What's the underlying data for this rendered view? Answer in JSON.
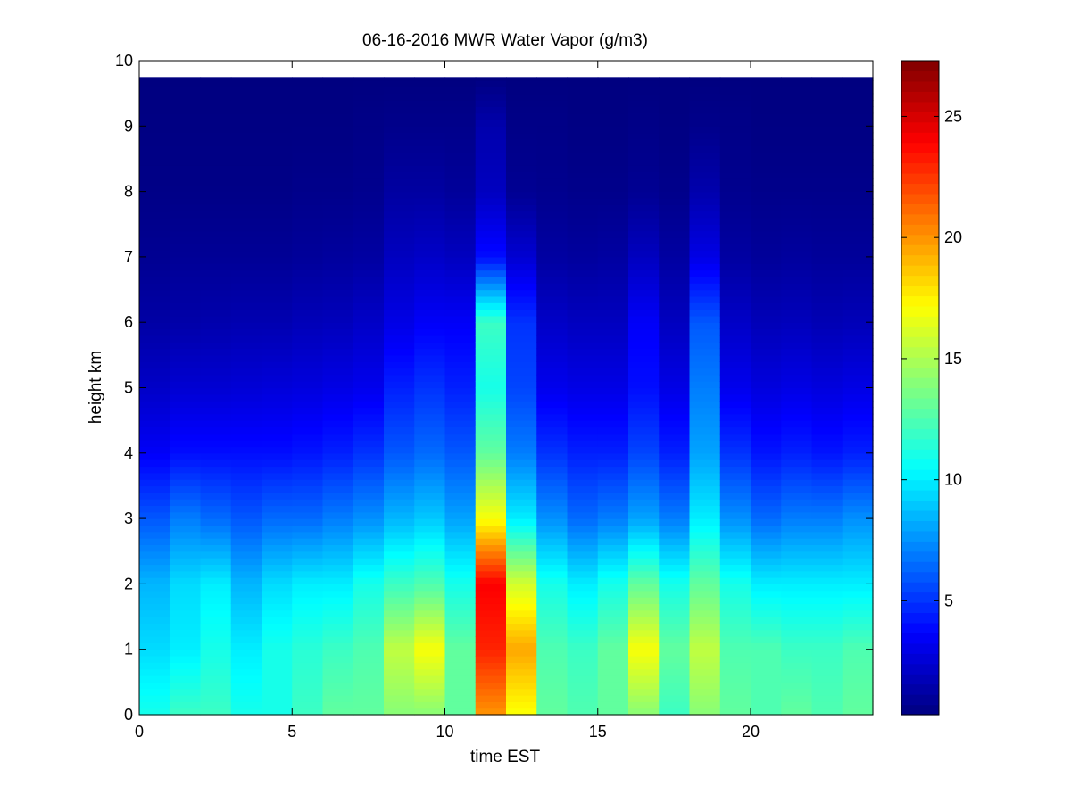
{
  "chart_data": {
    "type": "heatmap",
    "title": "06-16-2016 MWR Water Vapor (g/m3)",
    "xlabel": "time EST",
    "ylabel": "height km",
    "xlim": [
      0,
      24
    ],
    "ylim": [
      0,
      10
    ],
    "xticks": [
      0,
      5,
      10,
      15,
      20
    ],
    "yticks": [
      0,
      1,
      2,
      3,
      4,
      5,
      6,
      7,
      8,
      9,
      10
    ],
    "colorbar": {
      "range": [
        0.3,
        27.3
      ],
      "ticks": [
        5,
        10,
        15,
        20,
        25
      ],
      "colormap": "jet"
    },
    "grid": false,
    "time_step_hours": 1,
    "times": [
      0,
      1,
      2,
      3,
      4,
      5,
      6,
      7,
      8,
      9,
      10,
      11,
      12,
      13,
      14,
      15,
      16,
      17,
      18,
      19,
      20,
      21,
      22,
      23
    ],
    "profile_levels_km": [
      0,
      1,
      2,
      3,
      4,
      5,
      6,
      7,
      8,
      9,
      9.75
    ],
    "top_height_km": 9.75,
    "profiles": [
      [
        11,
        9.5,
        8.5,
        6,
        3.5,
        2.2,
        1.3,
        0.8,
        0.5,
        0.4,
        0.3
      ],
      [
        12,
        10,
        9.5,
        7,
        4,
        2.5,
        1.4,
        0.9,
        0.5,
        0.4,
        0.3
      ],
      [
        12,
        11,
        10,
        6.5,
        4,
        2.5,
        1.5,
        0.9,
        0.5,
        0.4,
        0.3
      ],
      [
        11,
        10,
        8.5,
        6,
        4,
        2.6,
        1.6,
        0.9,
        0.5,
        0.4,
        0.3
      ],
      [
        11,
        11,
        9.5,
        6.5,
        4,
        2.7,
        1.6,
        0.9,
        0.5,
        0.4,
        0.3
      ],
      [
        12,
        11.5,
        10,
        6.5,
        4.2,
        2.8,
        1.8,
        1,
        0.6,
        0.4,
        0.3
      ],
      [
        13,
        12,
        10,
        7,
        4.5,
        3,
        1.9,
        1.1,
        0.6,
        0.4,
        0.3
      ],
      [
        13,
        12.5,
        11,
        7.5,
        5,
        3.2,
        2.2,
        1.2,
        0.7,
        0.5,
        0.3
      ],
      [
        14,
        15.5,
        12,
        8.5,
        6,
        4.5,
        3,
        2,
        1.2,
        0.6,
        0.3
      ],
      [
        14,
        17,
        12.5,
        9,
        6.5,
        5,
        3.5,
        2.2,
        1.2,
        0.6,
        0.3
      ],
      [
        13,
        13,
        11,
        8,
        6,
        4.5,
        3.5,
        2,
        1,
        0.6,
        0.3
      ],
      [
        20,
        23,
        24,
        17,
        13,
        11,
        12,
        4,
        2,
        1.5,
        0.3
      ],
      [
        17,
        19.5,
        16,
        10,
        7,
        5.5,
        5,
        2.5,
        0.8,
        0.5,
        0.3
      ],
      [
        13,
        12.5,
        11,
        7.5,
        5,
        3.2,
        2.2,
        1.2,
        0.7,
        0.5,
        0.3
      ],
      [
        12.5,
        12,
        10,
        6.5,
        4.5,
        3,
        2,
        1.1,
        0.6,
        0.4,
        0.3
      ],
      [
        13,
        13,
        11,
        7,
        4.5,
        3,
        2,
        1.2,
        0.6,
        0.4,
        0.3
      ],
      [
        14,
        17,
        13,
        8,
        5.5,
        4,
        3.5,
        2,
        0.8,
        0.5,
        0.3
      ],
      [
        12,
        13,
        11,
        7,
        4.5,
        3,
        2,
        1.2,
        0.6,
        0.4,
        0.3
      ],
      [
        14,
        15.5,
        13,
        10,
        8,
        7,
        6,
        3,
        1.5,
        0.6,
        0.3
      ],
      [
        13,
        12.5,
        11,
        7.5,
        5,
        3.2,
        2.2,
        1.2,
        0.7,
        0.5,
        0.3
      ],
      [
        12.5,
        12.5,
        10,
        6.5,
        4.2,
        2.8,
        1.8,
        1,
        0.6,
        0.4,
        0.3
      ],
      [
        13,
        12,
        10,
        7,
        4.5,
        3,
        1.9,
        1.1,
        0.6,
        0.4,
        0.3
      ],
      [
        12.5,
        12,
        10,
        7,
        4.2,
        2.8,
        1.7,
        1,
        0.6,
        0.4,
        0.3
      ],
      [
        13,
        12.5,
        10,
        7.5,
        4.5,
        3,
        1.8,
        1,
        0.6,
        0.4,
        0.3
      ]
    ]
  }
}
